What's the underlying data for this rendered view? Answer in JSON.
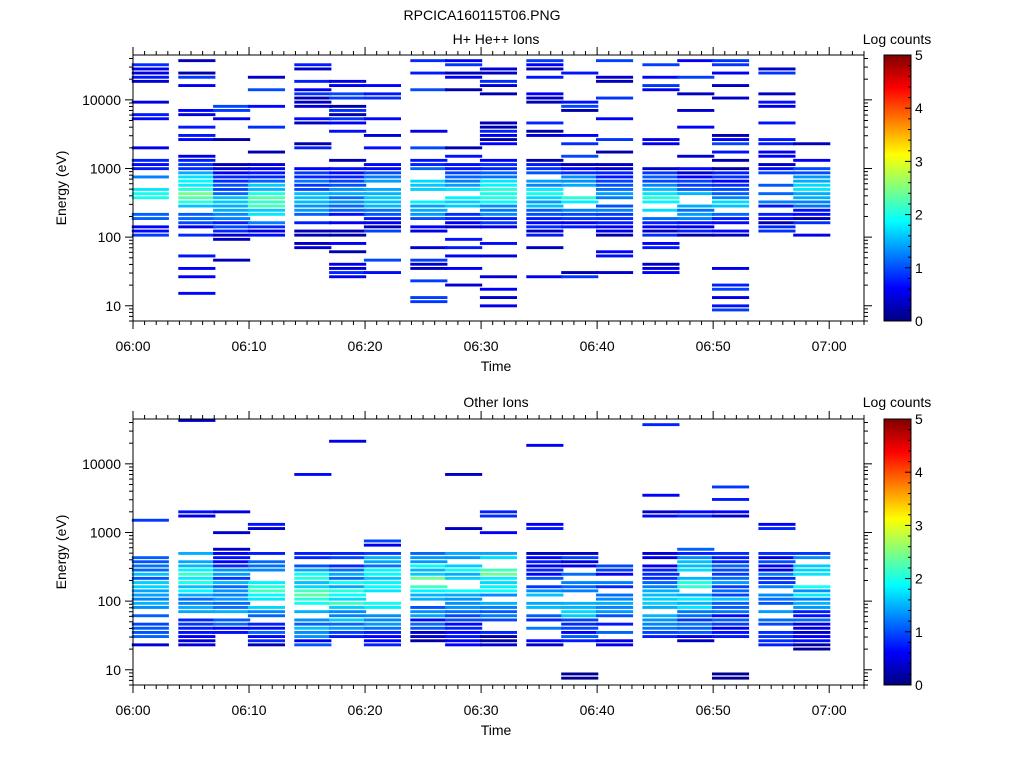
{
  "file_title": "RPCICA160115T06.PNG",
  "colormap": [
    "#00007f",
    "#0000ff",
    "#0080ff",
    "#00ffff",
    "#80ff80",
    "#ffff00",
    "#ff8000",
    "#ff0000",
    "#7f0000"
  ],
  "chart_data": [
    {
      "type": "heatmap",
      "title": "H+ He++ Ions",
      "xlabel": "Time",
      "ylabel": "Energy (eV)",
      "y_scale": "log",
      "xlim": [
        "06:00",
        "07:03"
      ],
      "ylim": [
        6,
        45000
      ],
      "x_ticks": [
        "06:00",
        "06:10",
        "06:20",
        "06:30",
        "06:40",
        "06:50",
        "07:00"
      ],
      "y_ticks": [
        "10",
        "100",
        "1000",
        "10000"
      ],
      "colorbar": {
        "label": "Log counts",
        "range": [
          0,
          5
        ],
        "ticks": [
          "0",
          "1",
          "2",
          "3",
          "4",
          "5"
        ]
      },
      "time_bins": [
        "06:01",
        "06:05",
        "06:08",
        "06:11",
        "06:15",
        "06:18",
        "06:21",
        "06:25",
        "06:28",
        "06:31",
        "06:35",
        "06:38",
        "06:41",
        "06:45",
        "06:48",
        "06:51",
        "06:55",
        "06:58"
      ],
      "profile": {
        "peak_energy_eV": [
          400,
          420,
          320,
          330,
          360,
          370,
          400,
          390,
          420,
          430,
          400,
          380,
          360,
          350,
          330,
          330,
          450,
          500
        ],
        "peak_log_counts": [
          2.1,
          2.3,
          1.6,
          2.3,
          1.5,
          1.4,
          1.8,
          2.1,
          2.0,
          2.2,
          1.8,
          2.0,
          1.4,
          2.0,
          1.8,
          1.6,
          1.4,
          1.7
        ],
        "band_fill": [
          0.45,
          0.6,
          0.7,
          0.55,
          0.65,
          0.6,
          0.55,
          0.55,
          0.6,
          0.6,
          0.6,
          0.55,
          0.6,
          0.6,
          0.6,
          0.6,
          0.5,
          0.5
        ],
        "band_width_decades": [
          0.55,
          0.55,
          0.55,
          0.5,
          0.55,
          0.55,
          0.5,
          0.55,
          0.5,
          0.5,
          0.55,
          0.5,
          0.55,
          0.5,
          0.5,
          0.5,
          0.45,
          0.45
        ],
        "scatter_fill": [
          0.3,
          0.35,
          0.3,
          0.25,
          0.35,
          0.35,
          0.2,
          0.35,
          0.3,
          0.3,
          0.3,
          0.25,
          0.3,
          0.3,
          0.25,
          0.3,
          0.3,
          0.25
        ],
        "scatter_range_eV": [
          [
            40,
            40000
          ],
          [
            8,
            40000
          ],
          [
            40,
            40000
          ],
          [
            100,
            40000
          ],
          [
            20,
            40000
          ],
          [
            20,
            40000
          ],
          [
            15,
            20000
          ],
          [
            8,
            40000
          ],
          [
            15,
            40000
          ],
          [
            8,
            40000
          ],
          [
            25,
            40000
          ],
          [
            25,
            40000
          ],
          [
            15,
            40000
          ],
          [
            20,
            40000
          ],
          [
            80,
            40000
          ],
          [
            8,
            40000
          ],
          [
            100,
            30000
          ],
          [
            80,
            25000
          ]
        ]
      }
    },
    {
      "type": "heatmap",
      "title": "Other Ions",
      "xlabel": "Time",
      "ylabel": "Energy (eV)",
      "y_scale": "log",
      "xlim": [
        "06:00",
        "07:03"
      ],
      "ylim": [
        6,
        45000
      ],
      "x_ticks": [
        "06:00",
        "06:10",
        "06:20",
        "06:30",
        "06:40",
        "06:50",
        "07:00"
      ],
      "y_ticks": [
        "10",
        "100",
        "1000",
        "10000"
      ],
      "colorbar": {
        "label": "Log counts",
        "range": [
          0,
          5
        ],
        "ticks": [
          "0",
          "1",
          "2",
          "3",
          "4",
          "5"
        ]
      },
      "time_bins": [
        "06:01",
        "06:05",
        "06:08",
        "06:11",
        "06:15",
        "06:18",
        "06:21",
        "06:25",
        "06:28",
        "06:31",
        "06:35",
        "06:38",
        "06:41",
        "06:45",
        "06:48",
        "06:51",
        "06:55",
        "06:58"
      ],
      "profile": {
        "band_range_eV": [
          [
            22,
            550
          ],
          [
            22,
            550
          ],
          [
            30,
            600
          ],
          [
            22,
            550
          ],
          [
            22,
            550
          ],
          [
            22,
            550
          ],
          [
            22,
            800
          ],
          [
            25,
            550
          ],
          [
            22,
            600
          ],
          [
            22,
            500
          ],
          [
            22,
            550
          ],
          [
            25,
            550
          ],
          [
            22,
            350
          ],
          [
            25,
            500
          ],
          [
            25,
            600
          ],
          [
            25,
            550
          ],
          [
            22,
            550
          ],
          [
            18,
            550
          ]
        ],
        "peak_energy_eV": [
          120,
          200,
          120,
          150,
          120,
          110,
          150,
          200,
          180,
          250,
          100,
          100,
          90,
          100,
          150,
          120,
          100,
          200
        ],
        "peak_log_counts": [
          1.7,
          2.0,
          1.5,
          2.0,
          2.2,
          2.0,
          2.0,
          2.1,
          1.9,
          2.2,
          1.5,
          1.6,
          1.4,
          1.6,
          1.9,
          1.3,
          1.4,
          1.8
        ],
        "band_fill": [
          0.85,
          0.85,
          0.9,
          0.85,
          0.85,
          0.9,
          0.8,
          0.85,
          0.85,
          0.8,
          0.85,
          0.85,
          0.85,
          0.8,
          0.85,
          0.85,
          0.85,
          0.85
        ],
        "sparse_energies_eV": [
          [
            1400
          ],
          [
            1800,
            40000
          ],
          [
            2000,
            950
          ],
          [
            1200
          ],
          [
            6500
          ],
          [
            21000
          ],
          [],
          [],
          [
            7000,
            1100
          ],
          [
            1000,
            1800
          ],
          [
            18000,
            1200
          ],
          [],
          [],
          [
            3500,
            1800,
            36000
          ],
          [
            1800
          ],
          [
            4500,
            3000,
            1800
          ],
          [
            1200
          ],
          []
        ],
        "low_blocks_eV": [
          [],
          [],
          [],
          [],
          [],
          [],
          [],
          [],
          [],
          [],
          [],
          [
            8
          ],
          [],
          [],
          [],
          [
            8
          ],
          [],
          []
        ]
      }
    }
  ]
}
